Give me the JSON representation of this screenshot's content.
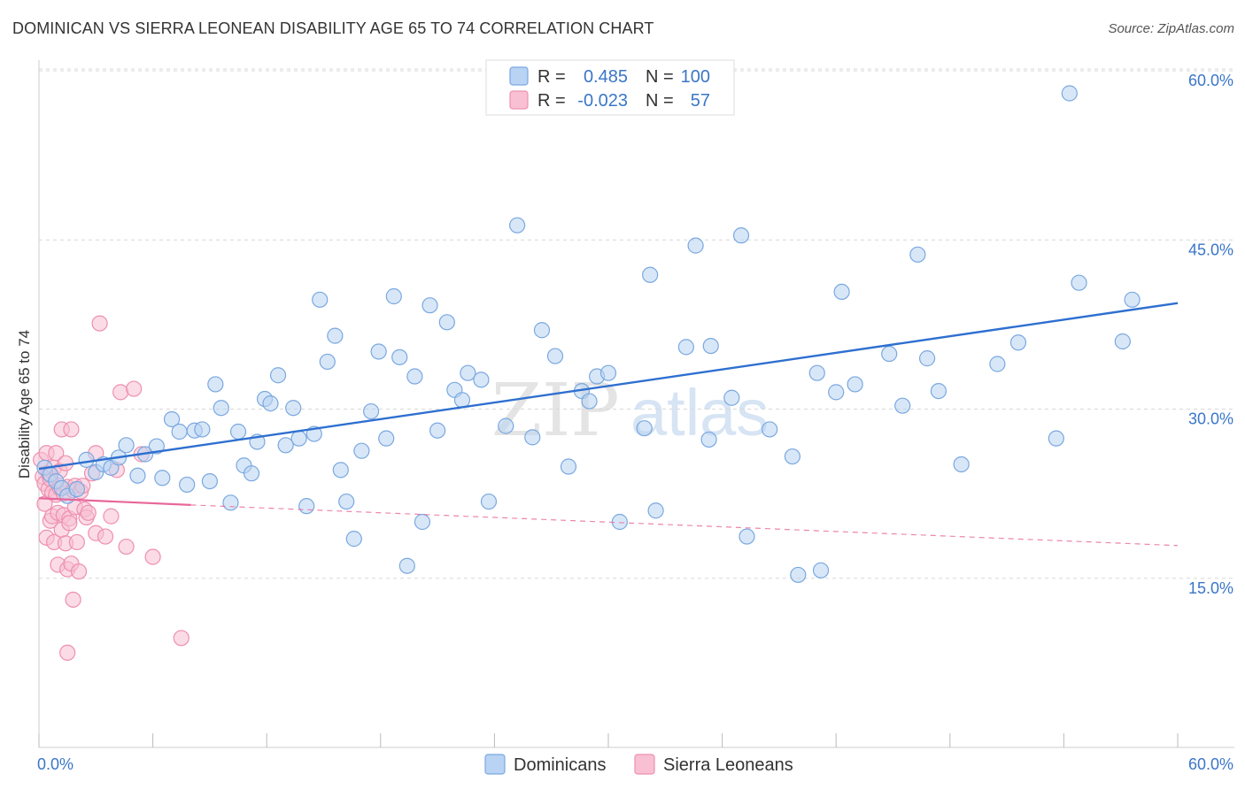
{
  "title": "DOMINICAN VS SIERRA LEONEAN DISABILITY AGE 65 TO 74 CORRELATION CHART",
  "source": "Source: ZipAtlas.com",
  "watermark": {
    "zip": "ZIP",
    "atlas": "atlas"
  },
  "colors": {
    "blue_fill": "#b8d3f3",
    "blue_stroke": "#7aa8df",
    "blue_line": "#2e6fd0",
    "pink_fill": "#f8c0d2",
    "pink_stroke": "#ee8fb0",
    "pink_line": "#e8679a",
    "grid": "#d8d8d8",
    "axis_text": "#3a76c8"
  },
  "legend": {
    "rows": [
      {
        "r_label": "R =",
        "r_value": "0.485",
        "n_label": "N =",
        "n_value": "100"
      },
      {
        "r_label": "R =",
        "r_value": "-0.023",
        "n_label": "N =",
        "n_value": "57"
      }
    ]
  },
  "bottom_legend": [
    "Dominicans",
    "Sierra Leoneans"
  ],
  "chart_data": {
    "type": "scatter",
    "title": "DOMINICAN VS SIERRA LEONEAN DISABILITY AGE 65 TO 74 CORRELATION CHART",
    "xlabel": "",
    "ylabel": "Disability Age 65 to 74",
    "xlim": [
      0,
      60
    ],
    "ylim": [
      0,
      60
    ],
    "x_tick_labels": [
      "0.0%",
      "60.0%"
    ],
    "y_ticks": [
      15,
      30,
      45,
      60
    ],
    "y_tick_labels": [
      "15.0%",
      "30.0%",
      "45.0%",
      "60.0%"
    ],
    "grid": true,
    "series": [
      {
        "name": "Dominicans",
        "r": 0.485,
        "n": 100,
        "trend": {
          "x0": 0,
          "y0": 24.7,
          "x1": 60,
          "y1": 39.4,
          "style": "solid"
        },
        "points": [
          [
            0.3,
            24.8
          ],
          [
            0.6,
            24.2
          ],
          [
            0.9,
            23.6
          ],
          [
            1.2,
            23.0
          ],
          [
            1.5,
            22.3
          ],
          [
            2.0,
            22.9
          ],
          [
            2.5,
            25.5
          ],
          [
            3.0,
            24.4
          ],
          [
            3.4,
            25.1
          ],
          [
            3.8,
            24.8
          ],
          [
            4.2,
            25.7
          ],
          [
            4.6,
            26.8
          ],
          [
            5.2,
            24.1
          ],
          [
            5.6,
            26.0
          ],
          [
            6.2,
            26.7
          ],
          [
            6.5,
            23.9
          ],
          [
            7.0,
            29.1
          ],
          [
            7.4,
            28.0
          ],
          [
            7.8,
            23.3
          ],
          [
            8.2,
            28.1
          ],
          [
            8.6,
            28.2
          ],
          [
            9.0,
            23.6
          ],
          [
            9.3,
            32.2
          ],
          [
            9.6,
            30.1
          ],
          [
            10.1,
            21.7
          ],
          [
            10.5,
            28.0
          ],
          [
            10.8,
            25.0
          ],
          [
            11.2,
            24.3
          ],
          [
            11.5,
            27.1
          ],
          [
            11.9,
            30.9
          ],
          [
            12.2,
            30.5
          ],
          [
            12.6,
            33.0
          ],
          [
            13.0,
            26.8
          ],
          [
            13.4,
            30.1
          ],
          [
            13.7,
            27.4
          ],
          [
            14.1,
            21.4
          ],
          [
            14.5,
            27.8
          ],
          [
            14.8,
            39.7
          ],
          [
            15.2,
            34.2
          ],
          [
            15.6,
            36.5
          ],
          [
            15.9,
            24.6
          ],
          [
            16.2,
            21.8
          ],
          [
            16.6,
            18.5
          ],
          [
            17.0,
            26.3
          ],
          [
            17.5,
            29.8
          ],
          [
            17.9,
            35.1
          ],
          [
            18.3,
            27.4
          ],
          [
            18.7,
            40.0
          ],
          [
            19.0,
            34.6
          ],
          [
            19.4,
            16.1
          ],
          [
            19.8,
            32.9
          ],
          [
            20.2,
            20.0
          ],
          [
            20.6,
            39.2
          ],
          [
            21.0,
            28.1
          ],
          [
            21.5,
            37.7
          ],
          [
            21.9,
            31.7
          ],
          [
            22.3,
            30.8
          ],
          [
            22.6,
            33.2
          ],
          [
            23.3,
            32.6
          ],
          [
            23.7,
            21.8
          ],
          [
            24.6,
            28.5
          ],
          [
            25.2,
            46.3
          ],
          [
            26.0,
            27.5
          ],
          [
            26.5,
            37.0
          ],
          [
            27.2,
            34.7
          ],
          [
            27.9,
            24.9
          ],
          [
            28.6,
            31.6
          ],
          [
            29.0,
            30.7
          ],
          [
            29.4,
            32.9
          ],
          [
            30.0,
            33.2
          ],
          [
            30.6,
            20.0
          ],
          [
            31.9,
            28.3
          ],
          [
            32.2,
            41.9
          ],
          [
            32.5,
            21.0
          ],
          [
            34.1,
            35.5
          ],
          [
            34.6,
            44.5
          ],
          [
            35.3,
            27.3
          ],
          [
            35.4,
            35.6
          ],
          [
            36.5,
            31.0
          ],
          [
            37.0,
            45.4
          ],
          [
            37.3,
            18.7
          ],
          [
            38.5,
            28.2
          ],
          [
            39.7,
            25.8
          ],
          [
            40.0,
            15.3
          ],
          [
            41.0,
            33.2
          ],
          [
            41.2,
            15.7
          ],
          [
            42.0,
            31.5
          ],
          [
            42.3,
            40.4
          ],
          [
            43.0,
            32.2
          ],
          [
            44.8,
            34.9
          ],
          [
            45.5,
            30.3
          ],
          [
            46.3,
            43.7
          ],
          [
            46.8,
            34.5
          ],
          [
            47.4,
            31.6
          ],
          [
            48.6,
            25.1
          ],
          [
            50.5,
            34.0
          ],
          [
            51.6,
            35.9
          ],
          [
            53.6,
            27.4
          ],
          [
            54.3,
            58.0
          ],
          [
            54.8,
            41.2
          ],
          [
            57.1,
            36.0
          ],
          [
            57.6,
            39.7
          ]
        ]
      },
      {
        "name": "Sierra Leoneans",
        "r": -0.023,
        "n": 57,
        "trend": {
          "x0": 0,
          "y0": 22.1,
          "x1": 8,
          "y1": 21.5,
          "dashed_x1": 60,
          "dashed_y1": 17.9
        },
        "points": [
          [
            0.1,
            25.5
          ],
          [
            0.2,
            24.0
          ],
          [
            0.3,
            23.4
          ],
          [
            0.3,
            21.6
          ],
          [
            0.4,
            26.1
          ],
          [
            0.4,
            18.6
          ],
          [
            0.5,
            24.3
          ],
          [
            0.5,
            22.9
          ],
          [
            0.6,
            20.1
          ],
          [
            0.6,
            23.8
          ],
          [
            0.7,
            22.6
          ],
          [
            0.7,
            20.5
          ],
          [
            0.8,
            24.8
          ],
          [
            0.8,
            18.2
          ],
          [
            0.9,
            26.1
          ],
          [
            0.9,
            22.4
          ],
          [
            1.0,
            20.8
          ],
          [
            1.0,
            16.2
          ],
          [
            1.1,
            24.5
          ],
          [
            1.1,
            23.0
          ],
          [
            1.2,
            19.3
          ],
          [
            1.2,
            28.2
          ],
          [
            1.3,
            22.5
          ],
          [
            1.3,
            20.6
          ],
          [
            1.4,
            25.2
          ],
          [
            1.4,
            18.1
          ],
          [
            1.5,
            15.8
          ],
          [
            1.5,
            23.1
          ],
          [
            1.6,
            20.3
          ],
          [
            1.6,
            19.9
          ],
          [
            1.7,
            28.2
          ],
          [
            1.7,
            16.3
          ],
          [
            1.8,
            13.1
          ],
          [
            1.8,
            22.8
          ],
          [
            1.9,
            21.3
          ],
          [
            1.9,
            23.2
          ],
          [
            2.0,
            18.2
          ],
          [
            2.1,
            15.6
          ],
          [
            2.2,
            22.7
          ],
          [
            2.3,
            23.2
          ],
          [
            2.4,
            21.1
          ],
          [
            2.5,
            20.4
          ],
          [
            2.6,
            20.8
          ],
          [
            2.8,
            24.3
          ],
          [
            3.0,
            19.0
          ],
          [
            3.0,
            26.1
          ],
          [
            3.2,
            37.6
          ],
          [
            3.5,
            18.7
          ],
          [
            3.8,
            20.5
          ],
          [
            4.1,
            24.6
          ],
          [
            4.3,
            31.5
          ],
          [
            4.6,
            17.8
          ],
          [
            5.0,
            31.8
          ],
          [
            5.4,
            26.0
          ],
          [
            6.0,
            16.9
          ],
          [
            7.5,
            9.7
          ],
          [
            1.5,
            8.4
          ]
        ]
      }
    ]
  }
}
